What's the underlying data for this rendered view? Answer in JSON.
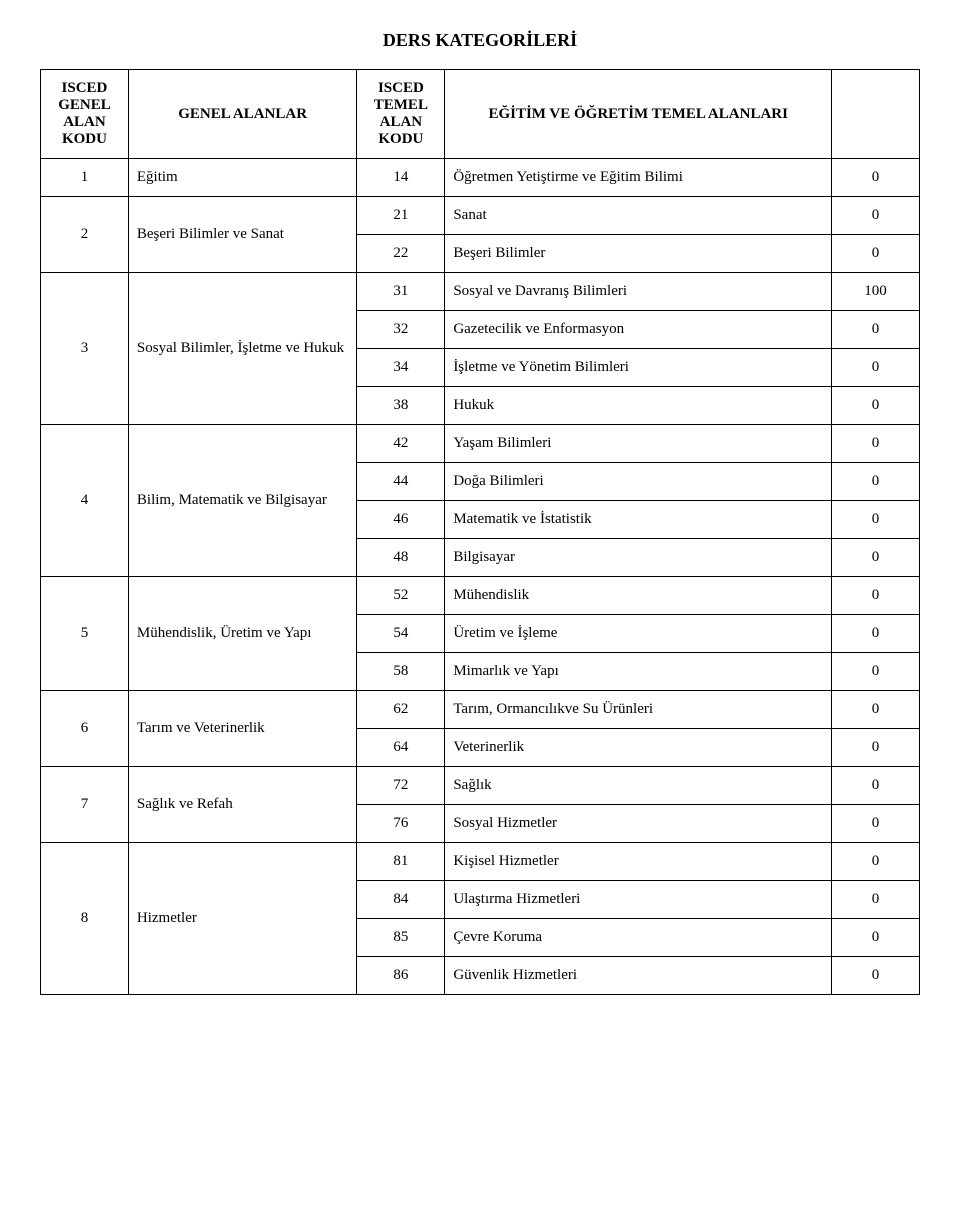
{
  "page": {
    "title": "DERS KATEGORİLERİ"
  },
  "headers": {
    "col1": "ISCED GENEL ALAN KODU",
    "col2": "GENEL ALANLAR",
    "col3": "ISCED TEMEL ALAN KODU",
    "col4": "EĞİTİM VE ÖĞRETİM TEMEL ALANLARI",
    "col5": ""
  },
  "groups": [
    {
      "code": "1",
      "name": "Eğitim",
      "rows": [
        {
          "subcode": "14",
          "subname": "Öğretmen Yetiştirme ve Eğitim Bilimi",
          "value": "0"
        }
      ]
    },
    {
      "code": "2",
      "name": "Beşeri Bilimler ve Sanat",
      "rows": [
        {
          "subcode": "21",
          "subname": "Sanat",
          "value": "0"
        },
        {
          "subcode": "22",
          "subname": "Beşeri Bilimler",
          "value": "0"
        }
      ]
    },
    {
      "code": "3",
      "name": "Sosyal Bilimler, İşletme ve Hukuk",
      "rows": [
        {
          "subcode": "31",
          "subname": "Sosyal ve Davranış Bilimleri",
          "value": "100"
        },
        {
          "subcode": "32",
          "subname": "Gazetecilik ve Enformasyon",
          "value": "0"
        },
        {
          "subcode": "34",
          "subname": "İşletme ve Yönetim Bilimleri",
          "value": "0"
        },
        {
          "subcode": "38",
          "subname": "Hukuk",
          "value": "0"
        }
      ]
    },
    {
      "code": "4",
      "name": "Bilim, Matematik ve Bilgisayar",
      "rows": [
        {
          "subcode": "42",
          "subname": "Yaşam Bilimleri",
          "value": "0"
        },
        {
          "subcode": "44",
          "subname": "Doğa Bilimleri",
          "value": "0"
        },
        {
          "subcode": "46",
          "subname": "Matematik ve İstatistik",
          "value": "0"
        },
        {
          "subcode": "48",
          "subname": "Bilgisayar",
          "value": "0"
        }
      ]
    },
    {
      "code": "5",
      "name": "Mühendislik, Üretim ve Yapı",
      "rows": [
        {
          "subcode": "52",
          "subname": "Mühendislik",
          "value": "0"
        },
        {
          "subcode": "54",
          "subname": "Üretim ve İşleme",
          "value": "0"
        },
        {
          "subcode": "58",
          "subname": "Mimarlık ve Yapı",
          "value": "0"
        }
      ]
    },
    {
      "code": "6",
      "name": "Tarım ve Veterinerlik",
      "rows": [
        {
          "subcode": "62",
          "subname": "Tarım, Ormancılıkve Su Ürünleri",
          "value": "0"
        },
        {
          "subcode": "64",
          "subname": "Veterinerlik",
          "value": "0"
        }
      ]
    },
    {
      "code": "7",
      "name": "Sağlık ve Refah",
      "rows": [
        {
          "subcode": "72",
          "subname": "Sağlık",
          "value": "0"
        },
        {
          "subcode": "76",
          "subname": "Sosyal Hizmetler",
          "value": "0"
        }
      ]
    },
    {
      "code": "8",
      "name": "Hizmetler",
      "rows": [
        {
          "subcode": "81",
          "subname": "Kişisel Hizmetler",
          "value": "0"
        },
        {
          "subcode": "84",
          "subname": "Ulaştırma Hizmetleri",
          "value": "0"
        },
        {
          "subcode": "85",
          "subname": "Çevre Koruma",
          "value": "0"
        },
        {
          "subcode": "86",
          "subname": "Güvenlik Hizmetleri",
          "value": "0"
        }
      ]
    }
  ]
}
